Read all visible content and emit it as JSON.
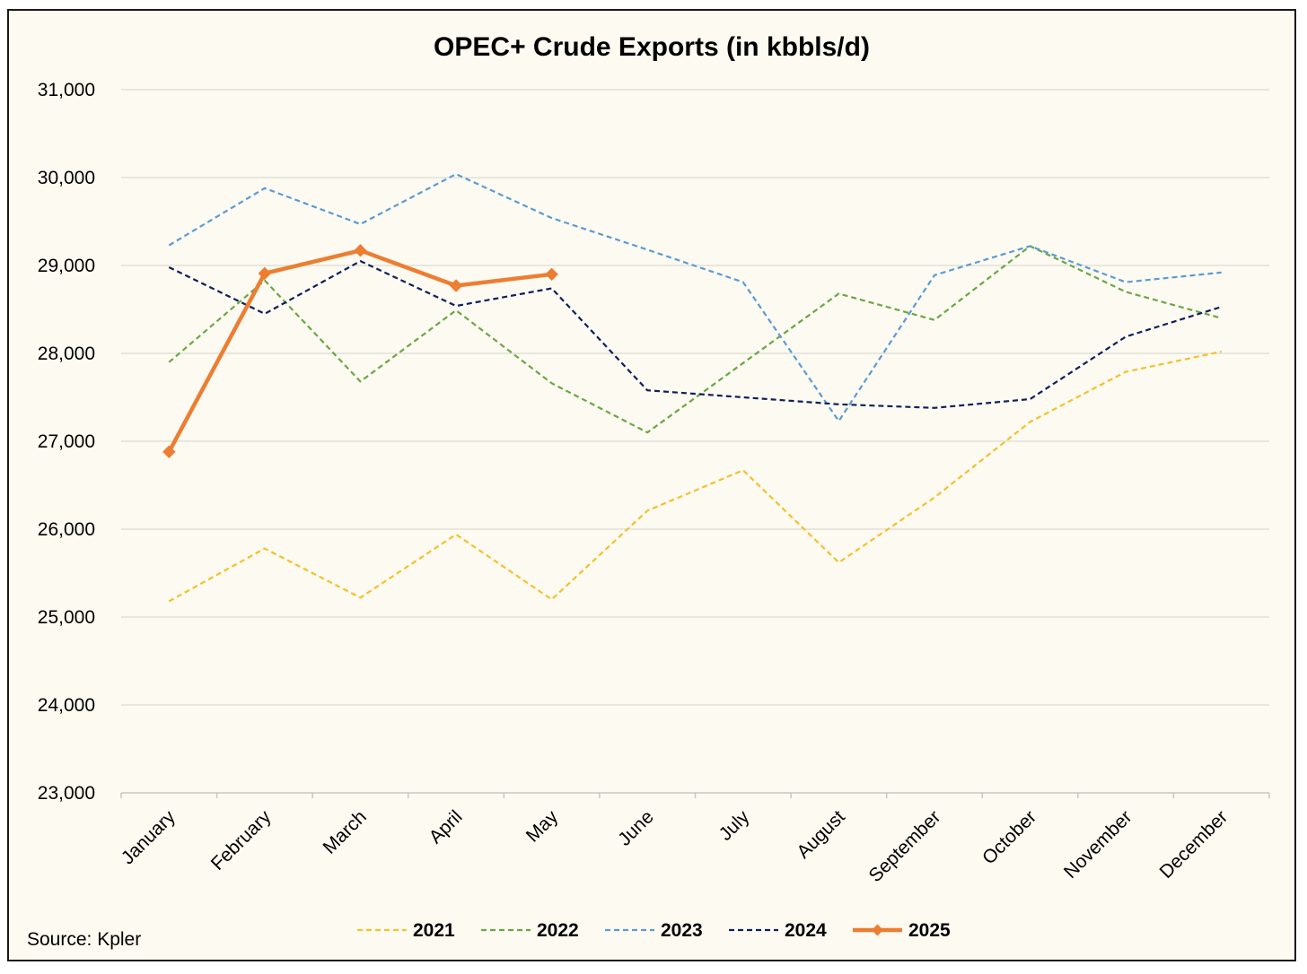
{
  "chart_data": {
    "type": "line",
    "title": "OPEC+ Crude Exports (in kbbls/d)",
    "xlabel": "",
    "ylabel": "",
    "ylim": [
      23000,
      31000
    ],
    "yticks": [
      23000,
      24000,
      25000,
      26000,
      27000,
      28000,
      29000,
      30000,
      31000
    ],
    "ytick_labels": [
      "23,000",
      "24,000",
      "25,000",
      "26,000",
      "27,000",
      "28,000",
      "29,000",
      "30,000",
      "31,000"
    ],
    "grid": "horizontal",
    "legend_position": "bottom",
    "categories": [
      "January",
      "February",
      "March",
      "April",
      "May",
      "June",
      "July",
      "August",
      "September",
      "October",
      "November",
      "December"
    ],
    "series": [
      {
        "name": "2021",
        "color": "#f5c02a",
        "style": "dashed",
        "values": [
          25180,
          25780,
          25220,
          25940,
          25200,
          26210,
          26670,
          25620,
          26360,
          27220,
          27790,
          28020
        ]
      },
      {
        "name": "2022",
        "color": "#6aa744",
        "style": "dashed",
        "values": [
          27900,
          28830,
          27680,
          28490,
          27660,
          27100,
          27890,
          28680,
          28380,
          29220,
          28700,
          28400
        ]
      },
      {
        "name": "2023",
        "color": "#5b9bd5",
        "style": "dashed",
        "values": [
          29230,
          29880,
          29470,
          30040,
          29540,
          29180,
          28810,
          27230,
          28890,
          29220,
          28810,
          28920
        ]
      },
      {
        "name": "2024",
        "color": "#0e1f5b",
        "style": "dashed",
        "values": [
          28980,
          28450,
          29050,
          28540,
          28740,
          27580,
          27500,
          27420,
          27380,
          27480,
          28190,
          28530
        ]
      },
      {
        "name": "2025",
        "color": "#ed7d31",
        "style": "solid-markers",
        "values": [
          26880,
          28910,
          29170,
          28770,
          28900,
          null,
          null,
          null,
          null,
          null,
          null,
          null
        ]
      }
    ],
    "source": "Source: Kpler"
  }
}
